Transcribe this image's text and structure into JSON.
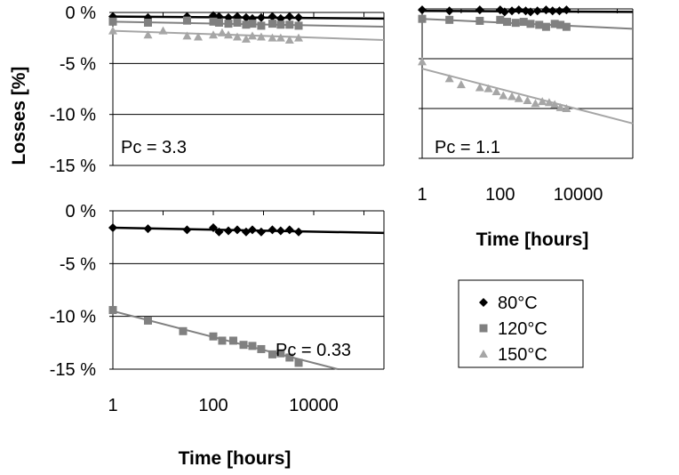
{
  "y_title": "Losses [%]",
  "x_title": "Time [hours]",
  "legend": {
    "items": [
      {
        "label": "80°C",
        "marker": "diamond",
        "color": "#000000"
      },
      {
        "label": "120°C",
        "marker": "square",
        "color": "#808080"
      },
      {
        "label": "150°C",
        "marker": "triangle",
        "color": "#a6a6a6"
      }
    ]
  },
  "chart_data": [
    {
      "type": "scatter",
      "panel": "top-left",
      "annotation": "Pc = 3.3",
      "xscale": "log",
      "xlim": [
        1,
        250000
      ],
      "ylim": [
        -15,
        0
      ],
      "yticks": [
        0,
        -5,
        -10,
        -15
      ],
      "ytick_labels": [
        "0 %",
        "-5 %",
        "-10 %",
        "-15 %"
      ],
      "xticks": [],
      "xtick_labels": [],
      "ylabel": "Losses [%]",
      "xlabel": "",
      "grid": true,
      "series": [
        {
          "name": "80°C",
          "x": [
            1,
            5,
            30,
            100,
            130,
            200,
            300,
            450,
            600,
            900,
            1500,
            2200,
            3300,
            5000
          ],
          "y": [
            -0.4,
            -0.5,
            -0.4,
            -0.3,
            -0.4,
            -0.5,
            -0.4,
            -0.5,
            -0.6,
            -0.5,
            -0.4,
            -0.6,
            -0.4,
            -0.5
          ],
          "trend": [
            [
              1,
              -0.4
            ],
            [
              250000,
              -0.6
            ]
          ]
        },
        {
          "name": "120°C",
          "x": [
            1,
            5,
            30,
            100,
            130,
            200,
            300,
            450,
            600,
            900,
            1500,
            2200,
            3300,
            5000
          ],
          "y": [
            -0.9,
            -1.0,
            -0.8,
            -0.9,
            -1.0,
            -1.1,
            -1.0,
            -1.2,
            -1.1,
            -1.3,
            -1.1,
            -1.2,
            -1.2,
            -1.3
          ],
          "trend": [
            [
              1,
              -0.9
            ],
            [
              250000,
              -1.4
            ]
          ]
        },
        {
          "name": "150°C",
          "x": [
            1,
            5,
            10,
            30,
            50,
            100,
            150,
            200,
            300,
            450,
            600,
            900,
            1500,
            2200,
            3300,
            5000
          ],
          "y": [
            -1.8,
            -2.2,
            -1.8,
            -2.3,
            -2.4,
            -2.2,
            -2.0,
            -2.2,
            -2.4,
            -2.6,
            -2.3,
            -2.4,
            -2.5,
            -2.5,
            -2.7,
            -2.5
          ],
          "trend": [
            [
              1,
              -1.8
            ],
            [
              250000,
              -2.7
            ]
          ]
        }
      ]
    },
    {
      "type": "scatter",
      "panel": "top-right",
      "annotation": "Pc = 1.1",
      "xscale": "log",
      "xlim": [
        1,
        250000
      ],
      "ylim": [
        -15,
        0
      ],
      "yticks": [
        0,
        -5,
        -10,
        -15
      ],
      "ytick_labels": [],
      "xticks": [
        1,
        100,
        10000
      ],
      "xtick_labels": [
        "1",
        "100",
        "10000"
      ],
      "xlabel": "Time [hours]",
      "grid": true,
      "series": [
        {
          "name": "80°C",
          "x": [
            1,
            5,
            30,
            100,
            130,
            200,
            300,
            450,
            600,
            900,
            1500,
            2200,
            3300,
            5000
          ],
          "y": [
            -0.1,
            -0.2,
            -0.1,
            -0.1,
            -0.3,
            -0.2,
            -0.1,
            -0.2,
            -0.3,
            -0.2,
            -0.1,
            -0.2,
            -0.2,
            -0.1
          ],
          "trend": [
            [
              1,
              -0.2
            ],
            [
              250000,
              -0.3
            ]
          ]
        },
        {
          "name": "120°C",
          "x": [
            1,
            5,
            30,
            100,
            150,
            250,
            400,
            600,
            1000,
            1500,
            2500,
            3500,
            5000
          ],
          "y": [
            -1.0,
            -1.1,
            -1.2,
            -1.1,
            -1.3,
            -1.4,
            -1.3,
            -1.5,
            -1.6,
            -1.8,
            -1.5,
            -1.6,
            -1.8
          ],
          "trend": [
            [
              1,
              -1.0
            ],
            [
              250000,
              -2.0
            ]
          ]
        },
        {
          "name": "150°C",
          "x": [
            1,
            5,
            10,
            30,
            50,
            80,
            120,
            200,
            300,
            500,
            800,
            1200,
            1800,
            2500,
            3500,
            5000
          ],
          "y": [
            -5.3,
            -7.0,
            -7.6,
            -7.9,
            -8.0,
            -8.3,
            -8.7,
            -8.8,
            -9.0,
            -9.2,
            -9.5,
            -9.3,
            -9.4,
            -9.6,
            -9.9,
            -10.0
          ],
          "trend": [
            [
              1,
              -6.0
            ],
            [
              250000,
              -11.5
            ]
          ]
        }
      ]
    },
    {
      "type": "scatter",
      "panel": "bottom-left",
      "annotation": "Pc = 0.33",
      "xscale": "log",
      "xlim": [
        1,
        250000
      ],
      "ylim": [
        -15,
        0
      ],
      "yticks": [
        0,
        -5,
        -10,
        -15
      ],
      "ytick_labels": [
        "0 %",
        "-5 %",
        "-10 %",
        "-15 %"
      ],
      "xticks": [
        1,
        100,
        10000
      ],
      "xtick_labels": [
        "1",
        "100",
        "10000"
      ],
      "xlabel": "Time [hours]",
      "grid": true,
      "series": [
        {
          "name": "80°C",
          "x": [
            1,
            5,
            30,
            100,
            130,
            200,
            300,
            450,
            600,
            900,
            1500,
            2200,
            3300,
            5000
          ],
          "y": [
            -1.6,
            -1.7,
            -1.8,
            -1.6,
            -2.0,
            -1.9,
            -1.8,
            -2.0,
            -1.8,
            -2.0,
            -1.8,
            -1.9,
            -1.8,
            -2.0
          ],
          "trend": [
            [
              1,
              -1.6
            ],
            [
              250000,
              -2.1
            ]
          ]
        },
        {
          "name": "120°C",
          "x": [
            1,
            5,
            25,
            100,
            150,
            250,
            400,
            600,
            900,
            1500,
            2200,
            3300,
            5000
          ],
          "y": [
            -9.4,
            -10.4,
            -11.4,
            -11.9,
            -12.3,
            -12.3,
            -12.7,
            -12.8,
            -13.1,
            -13.6,
            -13.5,
            -13.9,
            -14.4
          ],
          "trend": [
            [
              1,
              -9.5
            ],
            [
              30000,
              -15.0
            ]
          ]
        }
      ]
    }
  ]
}
